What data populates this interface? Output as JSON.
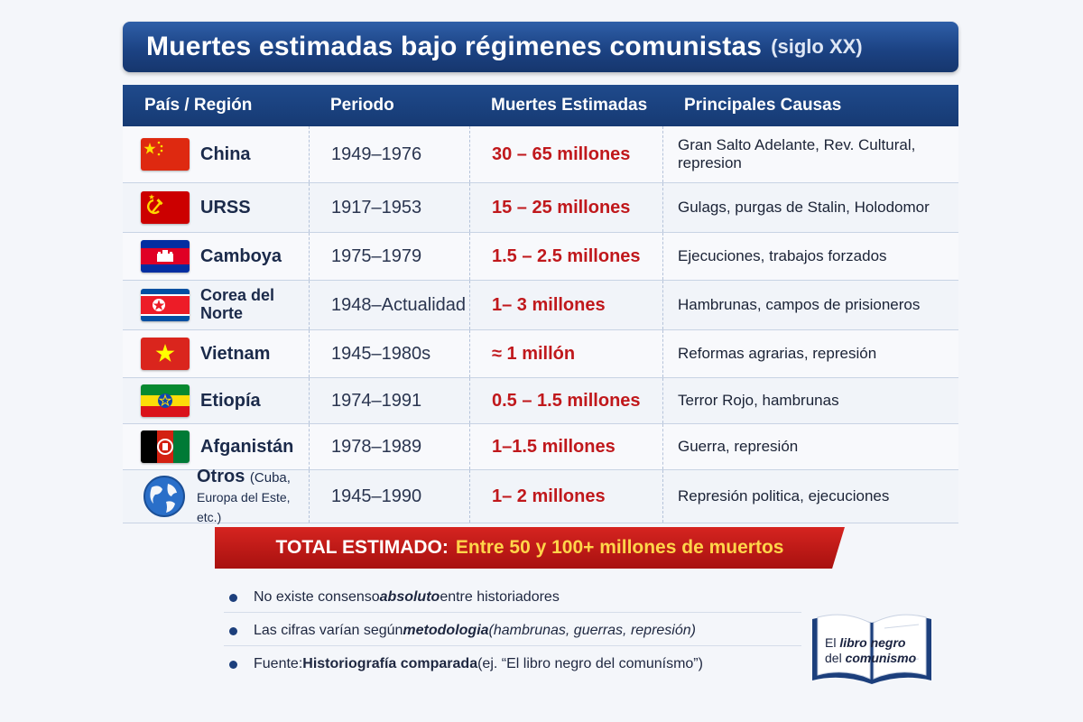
{
  "title": {
    "main": "Muertes estimadas bajo régimenes comunistas",
    "sub": "(siglo XX)"
  },
  "table": {
    "headers": [
      "País / Región",
      "Periodo",
      "Muertes Estimadas",
      "Principales Causas"
    ],
    "rows": [
      {
        "country": "China",
        "flag": "china-flag",
        "period": "1949–1976",
        "deaths": "30 – 65 millones",
        "causes": "Gran Salto Adelante, Rev. Cultural, represion"
      },
      {
        "country": "URSS",
        "flag": "ussr-flag",
        "period": "1917–1953",
        "deaths": "15 – 25 millones",
        "causes": "Gulags, purgas de Stalin, Holodomor"
      },
      {
        "country": "Camboya",
        "flag": "cambodia-flag",
        "period": "1975–1979",
        "deaths": "1.5 – 2.5 millones",
        "causes": "Ejecuciones, trabajos forzados"
      },
      {
        "country": "Corea del Norte",
        "flag": "north-korea-flag",
        "period": "1948–Actualidad",
        "deaths": "1– 3 millones",
        "causes": "Hambrunas, campos de prisioneros"
      },
      {
        "country": "Vietnam",
        "flag": "vietnam-flag",
        "period": "1945–1980s",
        "deaths": "≈ 1 millón",
        "causes": "Reformas agrarias, represión"
      },
      {
        "country": "Etiopía",
        "flag": "ethiopia-flag",
        "period": "1974–1991",
        "deaths": "0.5 – 1.5 millones",
        "causes": "Terror Rojo, hambrunas"
      },
      {
        "country": "Afganistán",
        "flag": "afghanistan-flag",
        "period": "1978–1989",
        "deaths": "1–1.5 millones",
        "causes": "Guerra, represión"
      },
      {
        "country": "Otros",
        "country_sub_1": "(Cuba,",
        "country_sub_2": "Europa del Este, etc.)",
        "flag": "globe-icon",
        "period": "1945–1990",
        "deaths": "1– 2 millones",
        "causes": "Represión politica, ejecuciones"
      }
    ]
  },
  "total": {
    "label": "TOTAL ESTIMADO:",
    "value": "Entre 50 y 100+ millones de muertos"
  },
  "notes": [
    {
      "pre": "No existe consenso ",
      "em": "absoluto",
      "post": " entre historiadores"
    },
    {
      "pre": "Las cifras varían según ",
      "em": "metodologia",
      "post": " (hambrunas, guerras, represión)"
    },
    {
      "pre": "Fuente: ",
      "em": "Historiografía comparada",
      "post": " (ej. “El libro negro del comunísmo”)"
    }
  ],
  "book": {
    "line1_pre": "El ",
    "line1_em": "libro negro",
    "line2_pre": "del ",
    "line2_em": "comunismo"
  },
  "colors": {
    "header_blue": "#1f4a8c",
    "death_red": "#c0181c",
    "total_red": "#d62420",
    "total_yellow": "#ffd54a"
  }
}
